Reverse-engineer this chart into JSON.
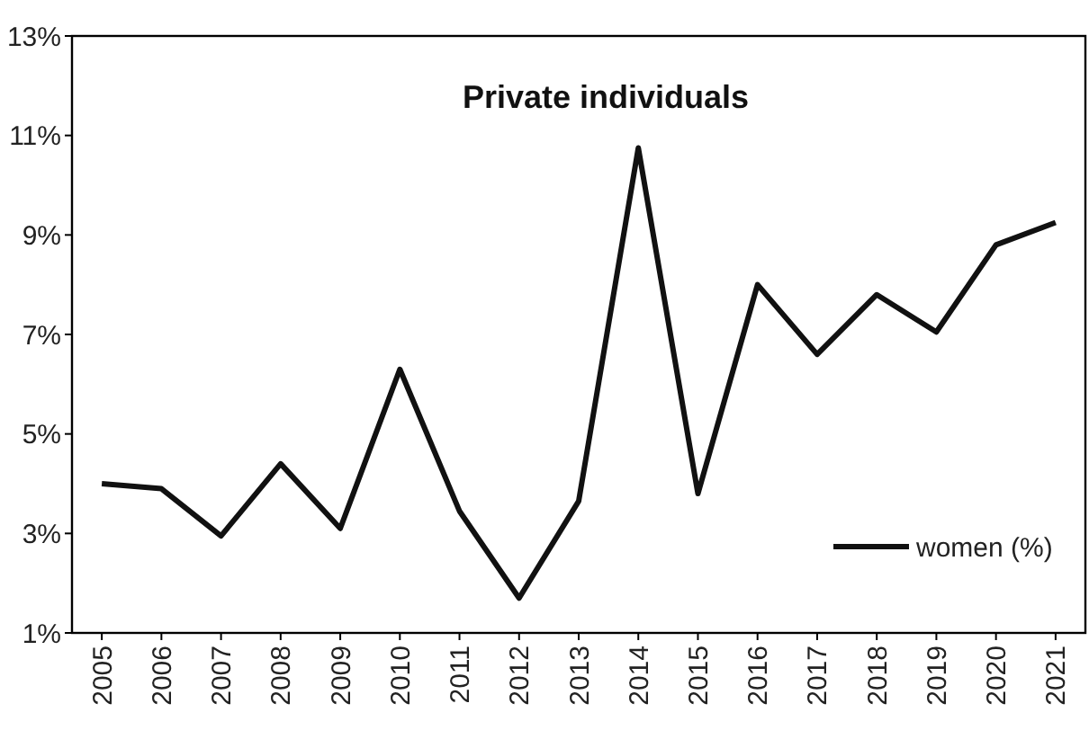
{
  "chart_data": {
    "type": "line",
    "title": "Private individuals",
    "categories": [
      "2005",
      "2006",
      "2007",
      "2008",
      "2009",
      "2010",
      "2011",
      "2012",
      "2013",
      "2014",
      "2015",
      "2016",
      "2017",
      "2018",
      "2019",
      "2020",
      "2021"
    ],
    "series": [
      {
        "name": "women (%)",
        "color": "#111111",
        "values": [
          4.0,
          3.9,
          2.95,
          4.4,
          3.1,
          6.3,
          3.45,
          1.7,
          3.65,
          10.75,
          3.8,
          8.0,
          6.6,
          7.8,
          7.05,
          8.8,
          9.25
        ]
      }
    ],
    "ylim": [
      1,
      13
    ],
    "yticks": [
      {
        "value": 1,
        "label": "1%"
      },
      {
        "value": 3,
        "label": "3%"
      },
      {
        "value": 5,
        "label": "5%"
      },
      {
        "value": 7,
        "label": "7%"
      },
      {
        "value": 9,
        "label": "9%"
      },
      {
        "value": 11,
        "label": "11%"
      },
      {
        "value": 13,
        "label": "13%"
      }
    ],
    "legend": "bottom right",
    "marker": "none",
    "line_style": "solid"
  }
}
